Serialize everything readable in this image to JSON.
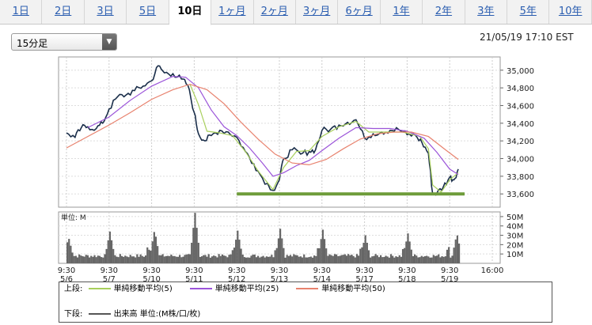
{
  "tabs": [
    {
      "label": "1日",
      "active": false
    },
    {
      "label": "2日",
      "active": false
    },
    {
      "label": "3日",
      "active": false
    },
    {
      "label": "5日",
      "active": false
    },
    {
      "label": "10日",
      "active": true
    },
    {
      "label": "1ヶ月",
      "active": false
    },
    {
      "label": "2ヶ月",
      "active": false
    },
    {
      "label": "3ヶ月",
      "active": false
    },
    {
      "label": "6ヶ月",
      "active": false
    },
    {
      "label": "1年",
      "active": false
    },
    {
      "label": "2年",
      "active": false
    },
    {
      "label": "3年",
      "active": false
    },
    {
      "label": "5年",
      "active": false
    },
    {
      "label": "10年",
      "active": false
    }
  ],
  "interval_select": {
    "value": "15分足"
  },
  "timestamp": "21/05/19 17:10 EST",
  "chart_data": [
    {
      "type": "line",
      "panel": "price",
      "ylim": [
        33450,
        35150
      ],
      "yticks": [
        "35,000",
        "34,800",
        "34,600",
        "34,400",
        "34,200",
        "34,000",
        "33,800",
        "33,600"
      ],
      "ytick_values": [
        35000,
        34800,
        34600,
        34400,
        34200,
        34000,
        33800,
        33600
      ],
      "x_range": [
        0,
        9.2
      ],
      "price": [
        [
          0.0,
          34290
        ],
        [
          0.2,
          34240
        ],
        [
          0.35,
          34350
        ],
        [
          0.5,
          34360
        ],
        [
          0.7,
          34340
        ],
        [
          0.85,
          34400
        ],
        [
          1.0,
          34560
        ],
        [
          1.2,
          34700
        ],
        [
          1.4,
          34720
        ],
        [
          1.6,
          34770
        ],
        [
          1.8,
          34820
        ],
        [
          2.0,
          34880
        ],
        [
          2.15,
          35050
        ],
        [
          2.3,
          34970
        ],
        [
          2.5,
          34960
        ],
        [
          2.7,
          34900
        ],
        [
          2.85,
          34830
        ],
        [
          3.0,
          34520
        ],
        [
          3.1,
          34280
        ],
        [
          3.25,
          34200
        ],
        [
          3.4,
          34260
        ],
        [
          3.6,
          34320
        ],
        [
          3.8,
          34300
        ],
        [
          4.0,
          34240
        ],
        [
          4.2,
          34080
        ],
        [
          4.4,
          33940
        ],
        [
          4.6,
          33780
        ],
        [
          4.85,
          33640
        ],
        [
          5.0,
          33760
        ],
        [
          5.1,
          34000
        ],
        [
          5.3,
          34100
        ],
        [
          5.5,
          34050
        ],
        [
          5.7,
          34080
        ],
        [
          5.85,
          34100
        ],
        [
          6.0,
          34320
        ],
        [
          6.2,
          34330
        ],
        [
          6.4,
          34380
        ],
        [
          6.6,
          34410
        ],
        [
          6.8,
          34440
        ],
        [
          7.0,
          34230
        ],
        [
          7.2,
          34280
        ],
        [
          7.4,
          34300
        ],
        [
          7.6,
          34320
        ],
        [
          7.8,
          34330
        ],
        [
          8.0,
          34270
        ],
        [
          8.2,
          34260
        ],
        [
          8.35,
          34180
        ],
        [
          8.5,
          34060
        ],
        [
          8.6,
          33600
        ],
        [
          8.7,
          33610
        ],
        [
          8.85,
          33680
        ],
        [
          9.0,
          33790
        ],
        [
          9.1,
          33760
        ],
        [
          9.2,
          33880
        ]
      ],
      "series": [
        {
          "name": "単純移動平均(5)",
          "color": "#a8cf5c",
          "values": [
            [
              2.9,
              34840
            ],
            [
              3.1,
              34610
            ],
            [
              3.3,
              34310
            ],
            [
              3.6,
              34290
            ],
            [
              3.9,
              34260
            ],
            [
              4.2,
              34080
            ],
            [
              4.5,
              33860
            ],
            [
              4.85,
              33650
            ],
            [
              5.1,
              33900
            ],
            [
              5.4,
              34080
            ],
            [
              5.7,
              34090
            ],
            [
              6.0,
              34250
            ],
            [
              6.4,
              34360
            ],
            [
              6.8,
              34420
            ],
            [
              7.1,
              34300
            ],
            [
              7.5,
              34300
            ],
            [
              7.9,
              34300
            ],
            [
              8.3,
              34250
            ],
            [
              8.5,
              34110
            ],
            [
              8.6,
              33700
            ],
            [
              8.8,
              33620
            ],
            [
              9.0,
              33760
            ],
            [
              9.2,
              33840
            ]
          ]
        },
        {
          "name": "単純移動平均(25)",
          "color": "#9b54d9",
          "values": [
            [
              0.5,
              34350
            ],
            [
              1.0,
              34470
            ],
            [
              1.5,
              34660
            ],
            [
              2.0,
              34820
            ],
            [
              2.5,
              34930
            ],
            [
              2.8,
              34920
            ],
            [
              3.1,
              34800
            ],
            [
              3.4,
              34550
            ],
            [
              3.7,
              34360
            ],
            [
              4.0,
              34260
            ],
            [
              4.3,
              34120
            ],
            [
              4.6,
              33950
            ],
            [
              4.85,
              33800
            ],
            [
              5.1,
              33840
            ],
            [
              5.4,
              33920
            ],
            [
              5.7,
              33980
            ],
            [
              6.0,
              34090
            ],
            [
              6.4,
              34230
            ],
            [
              6.8,
              34350
            ],
            [
              7.2,
              34340
            ],
            [
              7.6,
              34340
            ],
            [
              8.0,
              34310
            ],
            [
              8.4,
              34230
            ],
            [
              8.7,
              34070
            ],
            [
              9.0,
              33880
            ],
            [
              9.2,
              33820
            ]
          ]
        },
        {
          "name": "単純移動平均(50)",
          "color": "#e8826e",
          "values": [
            [
              0.0,
              34120
            ],
            [
              0.5,
              34250
            ],
            [
              1.0,
              34380
            ],
            [
              1.5,
              34520
            ],
            [
              2.0,
              34670
            ],
            [
              2.5,
              34780
            ],
            [
              2.9,
              34840
            ],
            [
              3.3,
              34780
            ],
            [
              3.7,
              34620
            ],
            [
              4.1,
              34410
            ],
            [
              4.5,
              34220
            ],
            [
              4.9,
              34050
            ],
            [
              5.3,
              33950
            ],
            [
              5.7,
              33930
            ],
            [
              6.1,
              33990
            ],
            [
              6.5,
              34110
            ],
            [
              6.9,
              34220
            ],
            [
              7.3,
              34280
            ],
            [
              7.7,
              34300
            ],
            [
              8.1,
              34300
            ],
            [
              8.5,
              34250
            ],
            [
              8.9,
              34100
            ],
            [
              9.2,
              33990
            ]
          ]
        }
      ],
      "support_line": {
        "value": 33600,
        "x_range": [
          4.0,
          9.35
        ],
        "color": "#6e9c3a"
      }
    },
    {
      "type": "bar",
      "panel": "volume",
      "unit_label": "単位: M",
      "ylim": [
        0,
        55
      ],
      "yticks": [
        "50M",
        "40M",
        "30M",
        "20M",
        "10M"
      ],
      "ytick_values": [
        50,
        40,
        30,
        20,
        10
      ],
      "spikes": [
        {
          "x": 0.03,
          "v": 28
        },
        {
          "x": 1.0,
          "v": 34
        },
        {
          "x": 2.05,
          "v": 36
        },
        {
          "x": 3.0,
          "v": 54
        },
        {
          "x": 4.0,
          "v": 35
        },
        {
          "x": 5.0,
          "v": 37
        },
        {
          "x": 6.0,
          "v": 36
        },
        {
          "x": 7.0,
          "v": 30
        },
        {
          "x": 8.0,
          "v": 32
        },
        {
          "x": 9.15,
          "v": 32
        }
      ],
      "base_level": 6
    }
  ],
  "x_labels": [
    {
      "t": "9:30",
      "d": "5/6",
      "x": 0.0
    },
    {
      "t": "9:30",
      "d": "5/7",
      "x": 1.0
    },
    {
      "t": "9:30",
      "d": "5/10",
      "x": 2.0
    },
    {
      "t": "9:30",
      "d": "5/11",
      "x": 3.0
    },
    {
      "t": "9:30",
      "d": "5/12",
      "x": 4.0
    },
    {
      "t": "9:30",
      "d": "5/13",
      "x": 5.0
    },
    {
      "t": "9:30",
      "d": "5/14",
      "x": 6.0
    },
    {
      "t": "9:30",
      "d": "5/17",
      "x": 7.0
    },
    {
      "t": "9:30",
      "d": "5/18",
      "x": 8.0
    },
    {
      "t": "9:30",
      "d": "5/19",
      "x": 9.0
    },
    {
      "t": "16:00",
      "d": "",
      "x": 10.0
    }
  ],
  "legend": {
    "upper_label": "上段:",
    "lower_label": "下段:",
    "upper": [
      {
        "name": "単純移動平均(5)",
        "color": "#a8cf5c"
      },
      {
        "name": "単純移動平均(25)",
        "color": "#9b54d9"
      },
      {
        "name": "単純移動平均(50)",
        "color": "#e8826e"
      }
    ],
    "lower": [
      {
        "name": "出来高 単位:(M株/口/枚)",
        "color": "#555555"
      }
    ]
  }
}
